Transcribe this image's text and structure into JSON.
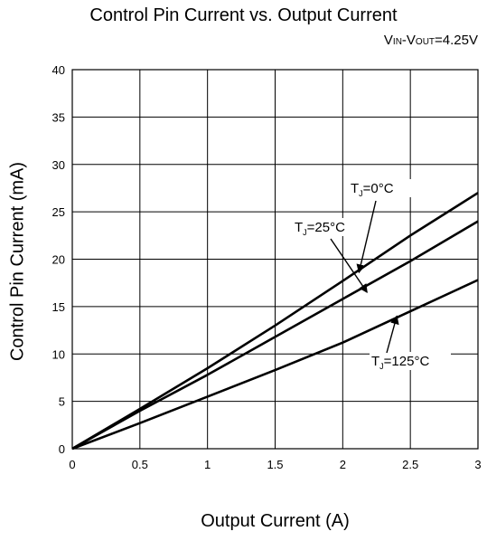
{
  "chart_data": {
    "type": "line",
    "title": "Control Pin Current vs. Output Current",
    "condition": {
      "v1": "V",
      "s1": "IN",
      "dash": "-V",
      "s2": "OUT",
      "value": "=4.25V"
    },
    "xlabel": "Output Current (A)",
    "ylabel": "Control Pin Current (mA)",
    "xlim": [
      0,
      3
    ],
    "ylim": [
      0,
      40
    ],
    "x_ticks": [
      0,
      0.5,
      1,
      1.5,
      2,
      2.5,
      3
    ],
    "x_tick_labels": [
      "0",
      "0.5",
      "1",
      "1.5",
      "2",
      "2.5",
      "3"
    ],
    "y_ticks": [
      0,
      5,
      10,
      15,
      20,
      25,
      30,
      35,
      40
    ],
    "y_tick_labels": [
      "0",
      "5",
      "10",
      "15",
      "20",
      "25",
      "30",
      "35",
      "40"
    ],
    "grid": true,
    "series": [
      {
        "name": "TJ=0°C",
        "label": {
          "t": "T",
          "sub": "J",
          "rest": "=0°C"
        },
        "x": [
          0,
          0.5,
          1,
          1.5,
          2,
          2.5,
          3
        ],
        "y": [
          0,
          4.2,
          8.5,
          13.0,
          17.7,
          22.5,
          27.0
        ]
      },
      {
        "name": "TJ=25°C",
        "label": {
          "t": "T",
          "sub": "J",
          "rest": "=25°C"
        },
        "x": [
          0,
          0.5,
          1,
          1.5,
          2,
          2.5,
          3
        ],
        "y": [
          0,
          4.0,
          7.8,
          11.8,
          15.8,
          19.8,
          24.0
        ]
      },
      {
        "name": "TJ=125°C",
        "label": {
          "t": "T",
          "sub": "J",
          "rest": "=125°C"
        },
        "x": [
          0,
          0.5,
          1,
          1.5,
          2,
          2.5,
          3
        ],
        "y": [
          0,
          2.7,
          5.5,
          8.3,
          11.2,
          14.5,
          17.8
        ]
      }
    ]
  }
}
